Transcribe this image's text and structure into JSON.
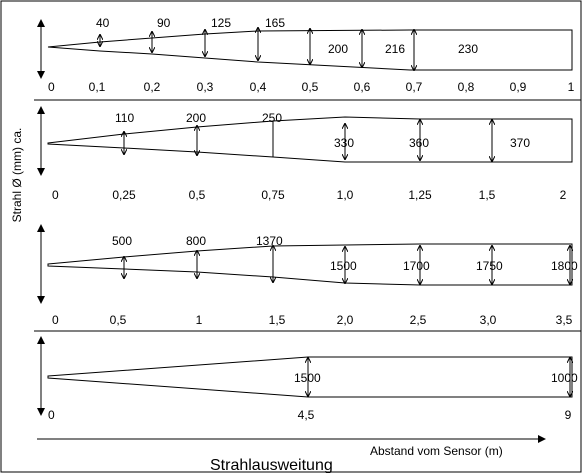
{
  "title": "Strahlausweitung",
  "y_axis_label": "Strahl Ø (mm) ca.",
  "x_axis_label": "Abstand vom Sensor (m)",
  "panels": [
    {
      "ticks": [
        "0",
        "0,1",
        "0,2",
        "0,3",
        "0,4",
        "0,5",
        "0,6",
        "0,7",
        "0,8",
        "0,9",
        "1"
      ],
      "diameters": [
        "40",
        "90",
        "125",
        "165",
        "200",
        "216",
        "230"
      ]
    },
    {
      "ticks": [
        "0",
        "0,25",
        "0,5",
        "0,75",
        "1,0",
        "1,25",
        "1,5",
        "2"
      ],
      "diameters": [
        "110",
        "200",
        "250",
        "330",
        "360",
        "370"
      ]
    },
    {
      "ticks": [
        "0",
        "0,5",
        "1",
        "1,5",
        "2,0",
        "2,5",
        "3,0",
        "3,5"
      ],
      "diameters": [
        "500",
        "800",
        "1370",
        "1500",
        "1700",
        "1750",
        "1800"
      ]
    },
    {
      "ticks": [
        "0",
        "4,5",
        "9"
      ],
      "diameters": [
        "1500",
        "1000"
      ]
    }
  ]
}
